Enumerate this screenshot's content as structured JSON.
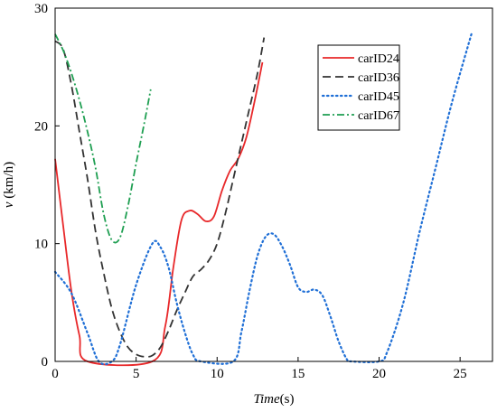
{
  "chart_data": {
    "type": "line",
    "title": "",
    "xlabel": "Time",
    "xlabel_suffix": "(s)",
    "ylabel": "v",
    "ylabel_suffix": " (km/h)",
    "xlim": [
      0,
      27
    ],
    "ylim": [
      0,
      30
    ],
    "xticks": [
      0,
      5,
      10,
      15,
      20,
      25
    ],
    "yticks": [
      0,
      10,
      20,
      30
    ],
    "grid": false,
    "legend_position": "top-right",
    "series": [
      {
        "name": "carID24",
        "color": "#e8282a",
        "dash": "solid",
        "points": [
          [
            0,
            17.2
          ],
          [
            0.5,
            11.5
          ],
          [
            1,
            6
          ],
          [
            1.5,
            2.2
          ],
          [
            2,
            0
          ],
          [
            6,
            0
          ],
          [
            6.8,
            3
          ],
          [
            7.3,
            8
          ],
          [
            7.8,
            12
          ],
          [
            8.3,
            12.8
          ],
          [
            8.8,
            12.5
          ],
          [
            9.3,
            11.9
          ],
          [
            9.8,
            12.3
          ],
          [
            10.3,
            14.5
          ],
          [
            10.8,
            16.2
          ],
          [
            11.3,
            17.2
          ],
          [
            11.8,
            19
          ],
          [
            12.3,
            22
          ],
          [
            12.8,
            25.4
          ]
        ]
      },
      {
        "name": "carID36",
        "color": "#333333",
        "dash": "long-dash",
        "points": [
          [
            0,
            27.2
          ],
          [
            0.5,
            26.5
          ],
          [
            1,
            23.5
          ],
          [
            1.5,
            19.5
          ],
          [
            2,
            15.5
          ],
          [
            2.5,
            11
          ],
          [
            3,
            7.5
          ],
          [
            3.5,
            4.5
          ],
          [
            4,
            2.5
          ],
          [
            4.5,
            1.2
          ],
          [
            5,
            0.6
          ],
          [
            5.5,
            0.4
          ],
          [
            6,
            0.5
          ],
          [
            6.5,
            1.2
          ],
          [
            7,
            2.6
          ],
          [
            7.5,
            4.3
          ],
          [
            8,
            5.8
          ],
          [
            8.5,
            7.2
          ],
          [
            9,
            7.8
          ],
          [
            9.5,
            8.6
          ],
          [
            10,
            10
          ],
          [
            10.5,
            12.5
          ],
          [
            11,
            15.5
          ],
          [
            11.5,
            18.5
          ],
          [
            12,
            21.5
          ],
          [
            12.5,
            24.5
          ],
          [
            12.9,
            27.5
          ]
        ]
      },
      {
        "name": "carID45",
        "color": "#1f6fd6",
        "dash": "dotted",
        "points": [
          [
            0,
            7.6
          ],
          [
            1,
            5.8
          ],
          [
            2,
            2.4
          ],
          [
            2.7,
            0
          ],
          [
            3.5,
            0
          ],
          [
            4,
            1.4
          ],
          [
            5,
            6.5
          ],
          [
            6,
            10
          ],
          [
            6.5,
            9.7
          ],
          [
            7,
            8
          ],
          [
            7.5,
            5
          ],
          [
            8,
            2.5
          ],
          [
            8.5,
            0.6
          ],
          [
            9,
            0
          ],
          [
            11,
            0
          ],
          [
            11.5,
            2.5
          ],
          [
            12,
            6
          ],
          [
            12.5,
            9
          ],
          [
            13,
            10.6
          ],
          [
            13.5,
            10.8
          ],
          [
            14,
            9.8
          ],
          [
            14.5,
            8.2
          ],
          [
            15,
            6.3
          ],
          [
            15.5,
            5.9
          ],
          [
            16,
            6.1
          ],
          [
            16.5,
            5.6
          ],
          [
            17,
            3.8
          ],
          [
            17.5,
            1.7
          ],
          [
            18,
            0.2
          ],
          [
            18.3,
            0
          ],
          [
            20,
            0
          ],
          [
            20.5,
            0.8
          ],
          [
            21.5,
            5
          ],
          [
            22.5,
            11
          ],
          [
            23.5,
            16.5
          ],
          [
            24.5,
            22
          ],
          [
            25.7,
            27.8
          ]
        ]
      },
      {
        "name": "carID67",
        "color": "#1f9f52",
        "dash": "dash-dot",
        "points": [
          [
            0,
            27.8
          ],
          [
            0.5,
            26.4
          ],
          [
            1,
            24.5
          ],
          [
            1.5,
            22.2
          ],
          [
            2,
            19.5
          ],
          [
            2.5,
            16.4
          ],
          [
            3,
            12.5
          ],
          [
            3.5,
            10.3
          ],
          [
            4,
            10.5
          ],
          [
            4.5,
            13.2
          ],
          [
            5,
            16.8
          ],
          [
            5.5,
            20.2
          ],
          [
            5.9,
            23.1
          ]
        ]
      }
    ]
  }
}
